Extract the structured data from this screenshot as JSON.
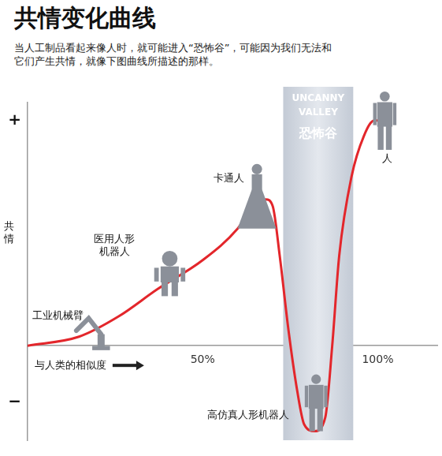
{
  "chart_data": {
    "type": "line",
    "title": "共情变化曲线",
    "subtitle": [
      "当人工制品看起来像人时，就可能进入“恐怖谷”，可能因为我们无法和",
      "它们产生共情，就像下图曲线所描述的那样。"
    ],
    "x_label": "与人类的相似度",
    "y_label": "共情",
    "x": [
      0,
      14.7,
      26,
      37,
      50,
      60,
      64,
      68,
      70,
      72,
      74.5,
      77,
      79,
      82,
      85,
      87,
      89,
      92.5,
      96,
      99,
      100
    ],
    "values": [
      0,
      0.04,
      0.13,
      0.25,
      0.38,
      0.52,
      0.61,
      0.65,
      0.62,
      0.4,
      0.07,
      -0.2,
      -0.35,
      -0.38,
      -0.32,
      0,
      0.4,
      0.75,
      0.93,
      1.0,
      1.0
    ],
    "color": "#e3262b",
    "xlim": [
      0,
      117
    ],
    "ylim": [
      -0.42,
      1.08
    ],
    "xticks": [
      {
        "value": 50,
        "label": "50%"
      },
      {
        "value": 100,
        "label": "100%"
      }
    ],
    "yticks": [
      {
        "value": -0.25,
        "label": "−"
      },
      {
        "value": 1,
        "label": "+"
      }
    ],
    "grid": false,
    "shaded_region": {
      "range": [
        73,
        93
      ],
      "labels": [
        "UNCANNY",
        "VALLEY",
        "恐怖谷"
      ],
      "color": "#c3cad5"
    },
    "annotations": [
      [
        "工业机械臂"
      ],
      [
        "医用人形",
        "机器人"
      ],
      [
        "卡通人"
      ],
      [
        "高仿真人形机器人"
      ],
      [
        "人"
      ]
    ]
  }
}
